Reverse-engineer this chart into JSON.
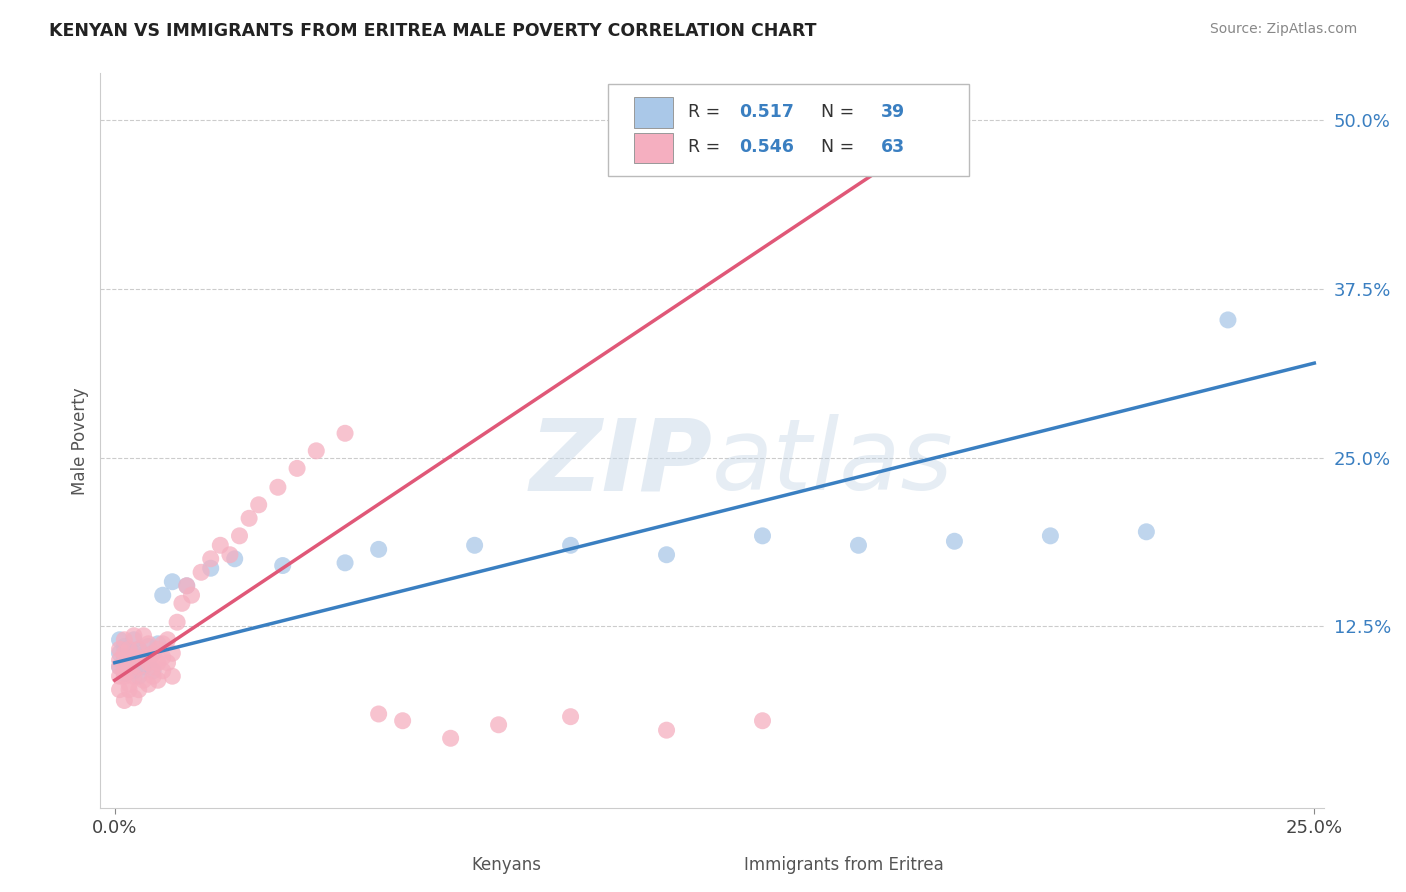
{
  "title": "KENYAN VS IMMIGRANTS FROM ERITREA MALE POVERTY CORRELATION CHART",
  "source": "Source: ZipAtlas.com",
  "xlabel_kenyans": "Kenyans",
  "xlabel_eritrea": "Immigrants from Eritrea",
  "ylabel": "Male Poverty",
  "xlim": [
    -0.003,
    0.252
  ],
  "ylim": [
    -0.01,
    0.535
  ],
  "ytick_positions": [
    0.125,
    0.25,
    0.375,
    0.5
  ],
  "ytick_labels": [
    "12.5%",
    "25.0%",
    "37.5%",
    "50.0%"
  ],
  "legend_R_kenyan": "0.517",
  "legend_N_kenyan": "39",
  "legend_R_eritrea": "0.546",
  "legend_N_eritrea": "63",
  "color_kenyan": "#aac8e8",
  "color_eritrea": "#f5afc0",
  "line_color_kenyan": "#3a7fc1",
  "line_color_eritrea": "#e05878",
  "kenyan_scatter": [
    [
      0.001,
      0.095
    ],
    [
      0.001,
      0.105
    ],
    [
      0.001,
      0.115
    ],
    [
      0.002,
      0.1
    ],
    [
      0.002,
      0.09
    ],
    [
      0.002,
      0.11
    ],
    [
      0.003,
      0.095
    ],
    [
      0.003,
      0.108
    ],
    [
      0.003,
      0.1
    ],
    [
      0.004,
      0.092
    ],
    [
      0.004,
      0.105
    ],
    [
      0.004,
      0.115
    ],
    [
      0.005,
      0.098
    ],
    [
      0.005,
      0.108
    ],
    [
      0.005,
      0.088
    ],
    [
      0.006,
      0.102
    ],
    [
      0.006,
      0.095
    ],
    [
      0.007,
      0.11
    ],
    [
      0.007,
      0.098
    ],
    [
      0.008,
      0.105
    ],
    [
      0.008,
      0.092
    ],
    [
      0.009,
      0.112
    ],
    [
      0.01,
      0.148
    ],
    [
      0.012,
      0.158
    ],
    [
      0.015,
      0.155
    ],
    [
      0.02,
      0.168
    ],
    [
      0.025,
      0.175
    ],
    [
      0.035,
      0.17
    ],
    [
      0.048,
      0.172
    ],
    [
      0.055,
      0.182
    ],
    [
      0.075,
      0.185
    ],
    [
      0.095,
      0.185
    ],
    [
      0.115,
      0.178
    ],
    [
      0.135,
      0.192
    ],
    [
      0.155,
      0.185
    ],
    [
      0.175,
      0.188
    ],
    [
      0.195,
      0.192
    ],
    [
      0.215,
      0.195
    ],
    [
      0.232,
      0.352
    ]
  ],
  "eritrea_scatter": [
    [
      0.001,
      0.088
    ],
    [
      0.001,
      0.1
    ],
    [
      0.001,
      0.108
    ],
    [
      0.001,
      0.095
    ],
    [
      0.001,
      0.078
    ],
    [
      0.002,
      0.092
    ],
    [
      0.002,
      0.105
    ],
    [
      0.002,
      0.088
    ],
    [
      0.002,
      0.115
    ],
    [
      0.002,
      0.07
    ],
    [
      0.003,
      0.098
    ],
    [
      0.003,
      0.082
    ],
    [
      0.003,
      0.108
    ],
    [
      0.003,
      0.092
    ],
    [
      0.003,
      0.078
    ],
    [
      0.004,
      0.102
    ],
    [
      0.004,
      0.088
    ],
    [
      0.004,
      0.118
    ],
    [
      0.004,
      0.072
    ],
    [
      0.005,
      0.095
    ],
    [
      0.005,
      0.078
    ],
    [
      0.005,
      0.108
    ],
    [
      0.006,
      0.102
    ],
    [
      0.006,
      0.085
    ],
    [
      0.006,
      0.118
    ],
    [
      0.007,
      0.098
    ],
    [
      0.007,
      0.082
    ],
    [
      0.007,
      0.112
    ],
    [
      0.008,
      0.105
    ],
    [
      0.008,
      0.088
    ],
    [
      0.008,
      0.095
    ],
    [
      0.009,
      0.098
    ],
    [
      0.009,
      0.108
    ],
    [
      0.009,
      0.085
    ],
    [
      0.01,
      0.102
    ],
    [
      0.01,
      0.092
    ],
    [
      0.01,
      0.112
    ],
    [
      0.011,
      0.098
    ],
    [
      0.011,
      0.115
    ],
    [
      0.012,
      0.105
    ],
    [
      0.012,
      0.088
    ],
    [
      0.013,
      0.128
    ],
    [
      0.014,
      0.142
    ],
    [
      0.015,
      0.155
    ],
    [
      0.016,
      0.148
    ],
    [
      0.018,
      0.165
    ],
    [
      0.02,
      0.175
    ],
    [
      0.022,
      0.185
    ],
    [
      0.024,
      0.178
    ],
    [
      0.026,
      0.192
    ],
    [
      0.028,
      0.205
    ],
    [
      0.03,
      0.215
    ],
    [
      0.034,
      0.228
    ],
    [
      0.038,
      0.242
    ],
    [
      0.042,
      0.255
    ],
    [
      0.048,
      0.268
    ],
    [
      0.055,
      0.06
    ],
    [
      0.06,
      0.055
    ],
    [
      0.07,
      0.042
    ],
    [
      0.08,
      0.052
    ],
    [
      0.095,
      0.058
    ],
    [
      0.115,
      0.048
    ],
    [
      0.135,
      0.055
    ]
  ],
  "kenyan_line": [
    [
      0.0,
      0.098
    ],
    [
      0.25,
      0.32
    ]
  ],
  "eritrea_line": [
    [
      0.0,
      0.085
    ],
    [
      0.175,
      0.5
    ]
  ]
}
